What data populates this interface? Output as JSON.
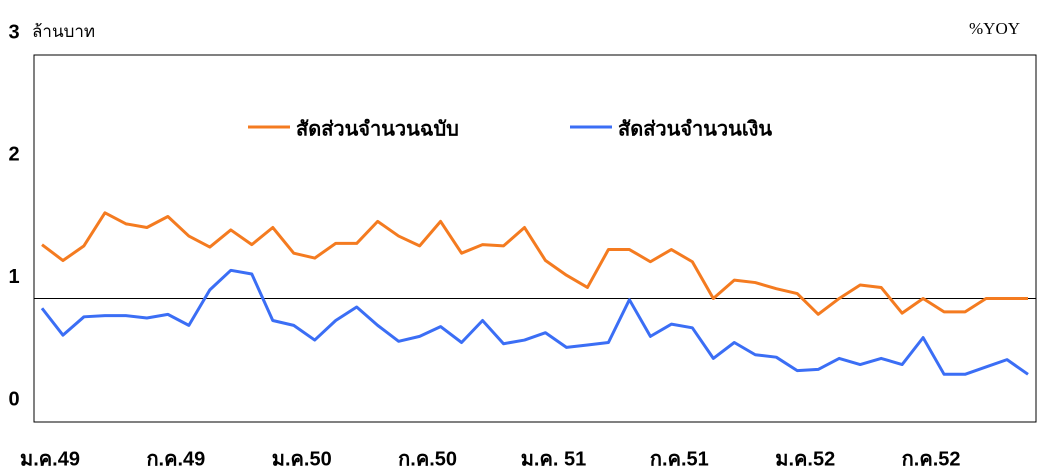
{
  "chart_data": {
    "type": "line",
    "y_label": "ล้านบาท",
    "y2_label": "%YOY",
    "categories": [
      "ม.ค.49",
      null,
      null,
      null,
      null,
      null,
      "ก.ค.49",
      null,
      null,
      null,
      null,
      null,
      "ม.ค.50",
      null,
      null,
      null,
      null,
      null,
      "ก.ค.50",
      null,
      null,
      null,
      null,
      null,
      "ม.ค. 51",
      null,
      null,
      null,
      null,
      null,
      "ก.ค.51",
      null,
      null,
      null,
      null,
      null,
      "ม.ค.52",
      null,
      null,
      null,
      null,
      null,
      "ก.ค.52",
      null,
      null,
      null,
      null,
      null
    ],
    "series": [
      {
        "name": "สัดส่วนจำนวนฉบับ",
        "color": "#f47b20",
        "values": [
          1.27,
          1.14,
          1.26,
          1.53,
          1.44,
          1.41,
          1.5,
          1.34,
          1.25,
          1.39,
          1.27,
          1.41,
          1.2,
          1.16,
          1.28,
          1.28,
          1.46,
          1.34,
          1.26,
          1.46,
          1.2,
          1.27,
          1.26,
          1.41,
          1.14,
          1.02,
          0.92,
          1.23,
          1.23,
          1.13,
          1.23,
          1.13,
          0.83,
          0.98,
          0.96,
          0.91,
          0.87,
          0.7,
          0.83,
          0.94,
          0.92,
          0.71,
          0.83,
          0.72,
          0.72,
          0.83,
          0.83,
          0.83
        ]
      },
      {
        "name": "สัดส่วนจำนวนเงิน",
        "color": "#3b6ef5",
        "values": [
          0.75,
          0.53,
          0.68,
          0.69,
          0.69,
          0.67,
          0.7,
          0.61,
          0.9,
          1.06,
          1.03,
          0.65,
          0.61,
          0.49,
          0.65,
          0.76,
          0.61,
          0.48,
          0.52,
          0.6,
          0.47,
          0.65,
          0.46,
          0.49,
          0.55,
          0.43,
          0.45,
          0.47,
          0.82,
          0.52,
          0.62,
          0.59,
          0.34,
          0.47,
          0.37,
          0.35,
          0.24,
          0.25,
          0.34,
          0.29,
          0.34,
          0.29,
          0.51,
          0.21,
          0.21,
          0.27,
          0.33,
          0.21
        ]
      }
    ],
    "ylim": [
      0,
      3
    ],
    "yticks": [
      0,
      1,
      2,
      3
    ],
    "reference_line": 0.83,
    "grid": false,
    "legend": "top"
  }
}
